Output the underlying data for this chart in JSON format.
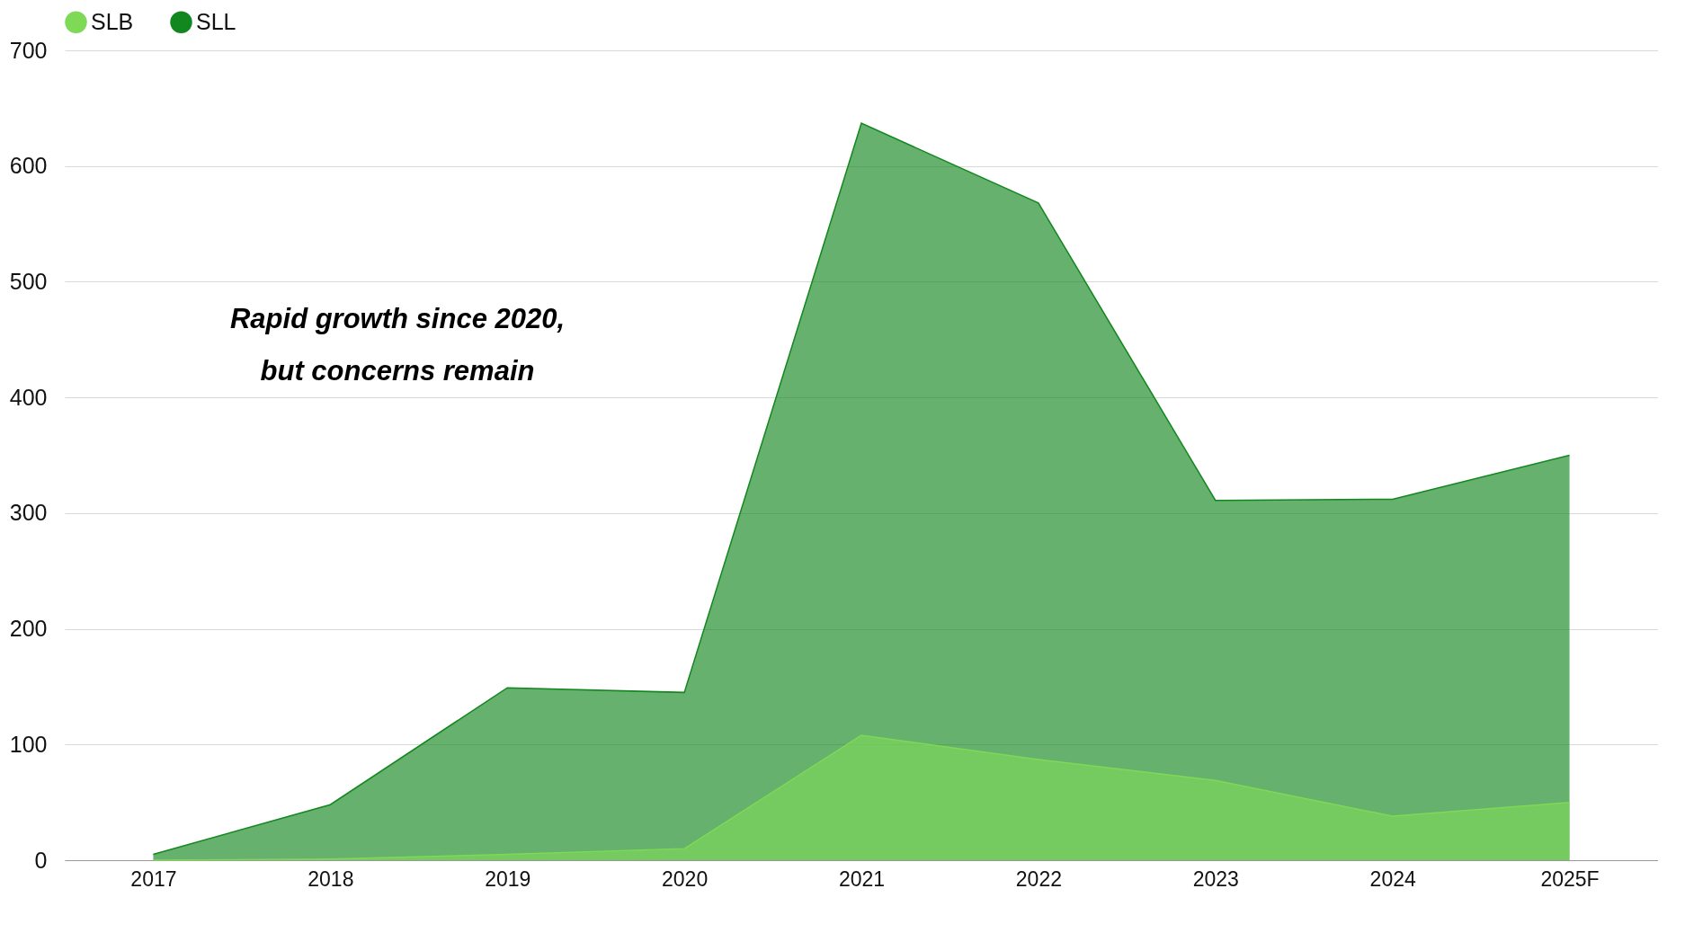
{
  "chart_data": {
    "type": "area",
    "categories": [
      "2017",
      "2018",
      "2019",
      "2020",
      "2021",
      "2022",
      "2023",
      "2024",
      "2025F"
    ],
    "series": [
      {
        "name": "SLB",
        "color": "#7ed957",
        "values": [
          0,
          1,
          5,
          10,
          108,
          87,
          69,
          38,
          50
        ]
      },
      {
        "name": "SLL",
        "color": "#13871f",
        "values": [
          5,
          48,
          149,
          145,
          637,
          568,
          311,
          312,
          350
        ]
      }
    ],
    "ylim": [
      0,
      700
    ],
    "yticks": [
      0,
      100,
      200,
      300,
      400,
      500,
      600,
      700
    ],
    "grid": "y",
    "legend": "top",
    "annotations": [
      "Rapid growth since 2020,\nbut concerns remain"
    ]
  }
}
